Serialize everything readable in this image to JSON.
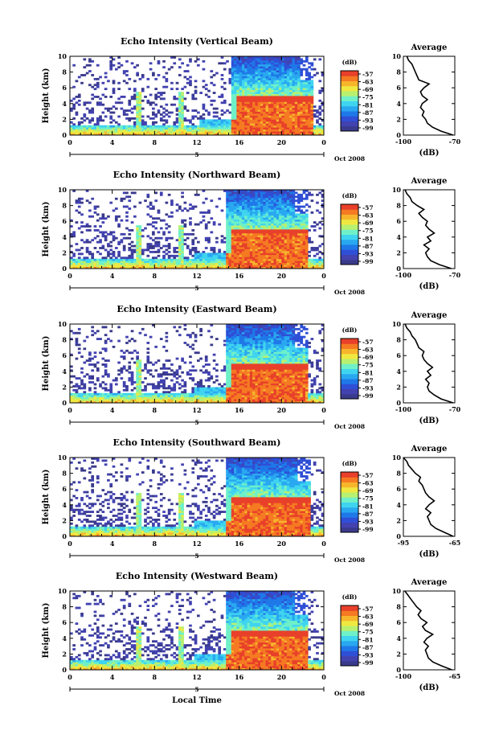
{
  "figure": {
    "xlabel": "Local Time",
    "date_label": "Oct 2008",
    "day_label": "5",
    "colorbar_unit": "(dB)",
    "colorbar_ticks": [
      "-57",
      "-63",
      "-69",
      "-75",
      "-81",
      "-87",
      "-93",
      "-99"
    ],
    "colorbar_colors": [
      "#3a3a8c",
      "#4242b0",
      "#2f4fd6",
      "#1f78e8",
      "#29a8f0",
      "#3fd4f0",
      "#6ff0c8",
      "#b8f070",
      "#f0e840",
      "#f7b52c",
      "#f57a22",
      "#e8402a"
    ],
    "avg_title": "Average",
    "avg_xlabel": "(dB)"
  },
  "chart_data": [
    {
      "type": "heatmap",
      "title": "Echo Intensity (Vertical Beam)",
      "ylabel": "Height (km)",
      "xlabel": "",
      "x_ticks": [
        "0",
        "4",
        "8",
        "12",
        "16",
        "20",
        "0"
      ],
      "y_ticks": [
        "0",
        "2",
        "4",
        "6",
        "8",
        "10"
      ],
      "xlim": [
        0,
        24
      ],
      "ylim": [
        0,
        10
      ],
      "rain_period": [
        15.2,
        23.0
      ],
      "bright_band_km": 4.5,
      "spikes_hours": [
        6.5,
        10.5
      ],
      "avg_profile": {
        "type": "line",
        "title": "Average",
        "xlabel": "(dB)",
        "x_ticks": [
          "-100",
          "-70"
        ],
        "y_ticks": [
          "0",
          "2",
          "4",
          "6",
          "8",
          "10"
        ],
        "xlim": [
          -100,
          -70
        ],
        "height": [
          0,
          0.5,
          1,
          1.5,
          2,
          2.5,
          3,
          3.5,
          4,
          4.5,
          5,
          5.5,
          6,
          6.5,
          7,
          7.5,
          8,
          8.5,
          9,
          9.5,
          10
        ],
        "db": [
          -71,
          -78,
          -83,
          -86,
          -87,
          -89,
          -88,
          -90,
          -89,
          -86,
          -89,
          -90,
          -88,
          -85,
          -91,
          -92,
          -93,
          -94,
          -95,
          -97,
          -98
        ]
      }
    },
    {
      "type": "heatmap",
      "title": "Echo Intensity (Northward Beam)",
      "ylabel": "Height (km)",
      "xlabel": "",
      "x_ticks": [
        "0",
        "4",
        "8",
        "12",
        "16",
        "20",
        "0"
      ],
      "y_ticks": [
        "0",
        "2",
        "4",
        "6",
        "8",
        "10"
      ],
      "xlim": [
        0,
        24
      ],
      "ylim": [
        0,
        10
      ],
      "rain_period": [
        14.8,
        22.5
      ],
      "bright_band_km": 4.6,
      "spikes_hours": [
        6.5,
        10.5
      ],
      "avg_profile": {
        "type": "line",
        "title": "Average",
        "xlabel": "(dB)",
        "x_ticks": [
          "-100",
          "-70"
        ],
        "y_ticks": [
          "0",
          "2",
          "4",
          "6",
          "8",
          "10"
        ],
        "xlim": [
          -100,
          -70
        ],
        "height": [
          0,
          0.5,
          1,
          1.5,
          2,
          2.5,
          3,
          3.5,
          4,
          4.5,
          5,
          5.5,
          6,
          6.5,
          7,
          7.5,
          8,
          8.5,
          9,
          9.5,
          10
        ],
        "db": [
          -72,
          -79,
          -84,
          -86,
          -87,
          -85,
          -88,
          -84,
          -86,
          -82,
          -85,
          -87,
          -86,
          -89,
          -91,
          -88,
          -92,
          -95,
          -96,
          -98,
          -99
        ]
      }
    },
    {
      "type": "heatmap",
      "title": "Echo Intensity (Eastward Beam)",
      "ylabel": "Height (km)",
      "xlabel": "",
      "x_ticks": [
        "0",
        "4",
        "8",
        "12",
        "16",
        "20",
        "0"
      ],
      "y_ticks": [
        "0",
        "2",
        "4",
        "6",
        "8",
        "10"
      ],
      "xlim": [
        0,
        24
      ],
      "ylim": [
        0,
        10
      ],
      "rain_period": [
        14.8,
        22.5
      ],
      "bright_band_km": 4.5,
      "spikes_hours": [
        6.5
      ],
      "avg_profile": {
        "type": "line",
        "title": "Average",
        "xlabel": "(dB)",
        "x_ticks": [
          "-100",
          "-70"
        ],
        "y_ticks": [
          "0",
          "2",
          "4",
          "6",
          "8",
          "10"
        ],
        "xlim": [
          -100,
          -70
        ],
        "height": [
          0,
          0.5,
          1,
          1.5,
          2,
          2.5,
          3,
          3.5,
          4,
          4.5,
          5,
          5.5,
          6,
          6.5,
          7,
          7.5,
          8,
          8.5,
          9,
          9.5,
          10
        ],
        "db": [
          -71,
          -78,
          -82,
          -85,
          -86,
          -85,
          -87,
          -84,
          -86,
          -83,
          -86,
          -88,
          -89,
          -88,
          -91,
          -92,
          -93,
          -95,
          -96,
          -98,
          -99
        ]
      }
    },
    {
      "type": "heatmap",
      "title": "Echo Intensity (Southward Beam)",
      "ylabel": "Height (km)",
      "xlabel": "",
      "x_ticks": [
        "0",
        "4",
        "8",
        "12",
        "16",
        "20",
        "0"
      ],
      "y_ticks": [
        "0",
        "2",
        "4",
        "6",
        "8",
        "10"
      ],
      "xlim": [
        0,
        24
      ],
      "ylim": [
        0,
        10
      ],
      "rain_period": [
        14.8,
        22.8
      ],
      "bright_band_km": 4.5,
      "spikes_hours": [
        6.5,
        10.5
      ],
      "avg_profile": {
        "type": "line",
        "title": "Average",
        "xlabel": "(dB)",
        "x_ticks": [
          "-95",
          "-65"
        ],
        "y_ticks": [
          "0",
          "2",
          "4",
          "6",
          "8",
          "10"
        ],
        "xlim": [
          -95,
          -65
        ],
        "height": [
          0,
          0.5,
          1,
          1.5,
          2,
          2.5,
          3,
          3.5,
          4,
          4.5,
          5,
          5.5,
          6,
          6.5,
          7,
          7.5,
          8,
          8.5,
          9,
          9.5,
          10
        ],
        "db": [
          -66,
          -71,
          -76,
          -79,
          -80,
          -81,
          -79,
          -82,
          -80,
          -77,
          -80,
          -82,
          -83,
          -84,
          -86,
          -85,
          -88,
          -90,
          -92,
          -93,
          -95
        ]
      }
    },
    {
      "type": "heatmap",
      "title": "Echo Intensity (Westward Beam)",
      "ylabel": "Height (km)",
      "xlabel": "Local Time",
      "x_ticks": [
        "0",
        "4",
        "8",
        "12",
        "16",
        "20",
        "0"
      ],
      "y_ticks": [
        "0",
        "2",
        "4",
        "6",
        "8",
        "10"
      ],
      "xlim": [
        0,
        24
      ],
      "ylim": [
        0,
        10
      ],
      "rain_period": [
        14.8,
        22.5
      ],
      "bright_band_km": 4.5,
      "spikes_hours": [
        6.5,
        10.5
      ],
      "avg_profile": {
        "type": "line",
        "title": "Average",
        "xlabel": "(dB)",
        "x_ticks": [
          "-100",
          "-65"
        ],
        "y_ticks": [
          "0",
          "2",
          "4",
          "6",
          "8",
          "10"
        ],
        "xlim": [
          -100,
          -65
        ],
        "height": [
          0,
          0.5,
          1,
          1.5,
          2,
          2.5,
          3,
          3.5,
          4,
          4.5,
          5,
          5.5,
          6,
          6.5,
          7,
          7.5,
          8,
          8.5,
          9,
          9.5,
          10
        ],
        "db": [
          -67,
          -74,
          -80,
          -83,
          -84,
          -85,
          -83,
          -86,
          -84,
          -80,
          -85,
          -87,
          -84,
          -88,
          -90,
          -88,
          -91,
          -93,
          -95,
          -97,
          -99
        ]
      }
    }
  ]
}
